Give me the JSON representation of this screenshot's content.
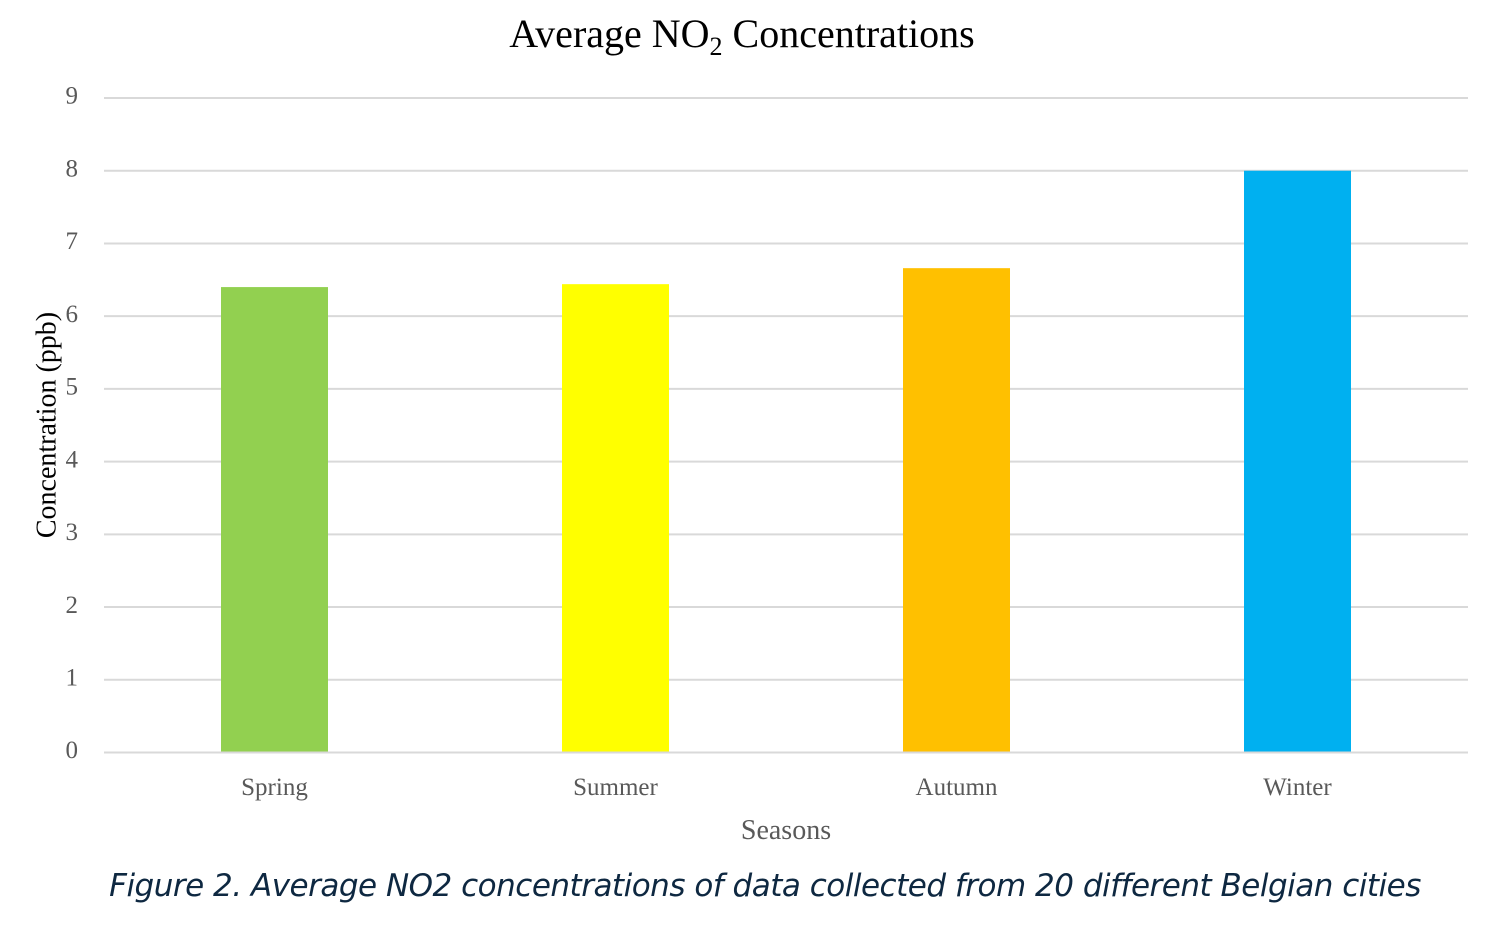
{
  "chart_data": {
    "type": "bar",
    "title": {
      "prefix": "Average NO",
      "subscript": "2",
      "suffix": " Concentrations"
    },
    "xlabel": "Seasons",
    "ylabel": "Concentration (ppb)",
    "categories": [
      "Spring",
      "Summer",
      "Autumn",
      "Winter"
    ],
    "values": [
      6.4,
      6.44,
      6.66,
      8.0
    ],
    "colors": [
      "#92d050",
      "#ffff00",
      "#ffc000",
      "#00b0f0"
    ],
    "ylim": [
      0,
      9
    ],
    "yticks": [
      0,
      1,
      2,
      3,
      4,
      5,
      6,
      7,
      8,
      9
    ],
    "grid": true,
    "legend": "none"
  },
  "caption": "Figure 2. Average NO2 concentrations of data collected from 20 different Belgian cities",
  "style": {
    "gridline_color": "#d9d9d9",
    "axis_line_color": "#d9d9d9",
    "tick_label_color": "#595959",
    "axis_title_color": "#000000",
    "xlabel_color": "#595959",
    "caption_color": "#0e2841"
  }
}
